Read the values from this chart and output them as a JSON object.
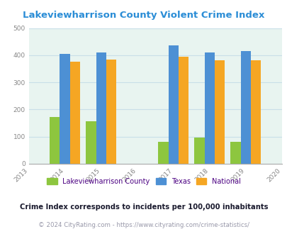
{
  "title": "Lakeviewharrison County Violent Crime Index",
  "all_years": [
    2013,
    2014,
    2015,
    2016,
    2017,
    2018,
    2019,
    2020
  ],
  "data_years": [
    2014,
    2015,
    2017,
    2018,
    2019
  ],
  "lakeview": [
    172,
    157,
    80,
    97,
    80
  ],
  "texas": [
    405,
    410,
    437,
    410,
    416
  ],
  "national": [
    376,
    384,
    394,
    381,
    381
  ],
  "bar_colors": {
    "lakeview": "#8dc63f",
    "texas": "#4d90d4",
    "national": "#f5a623"
  },
  "ylim": [
    0,
    500
  ],
  "yticks": [
    0,
    100,
    200,
    300,
    400,
    500
  ],
  "legend_labels": [
    "Lakeviewharrison County",
    "Texas",
    "National"
  ],
  "footnote1": "Crime Index corresponds to incidents per 100,000 inhabitants",
  "footnote2": "© 2024 CityRating.com - https://www.cityrating.com/crime-statistics/",
  "title_color": "#2b8dd6",
  "footnote1_color": "#1a1a2e",
  "footnote2_color": "#9999aa",
  "legend_text_color": "#4b0082",
  "bg_color": "#e8f4f0",
  "bar_width": 0.28,
  "grid_color": "#c8dfe8"
}
